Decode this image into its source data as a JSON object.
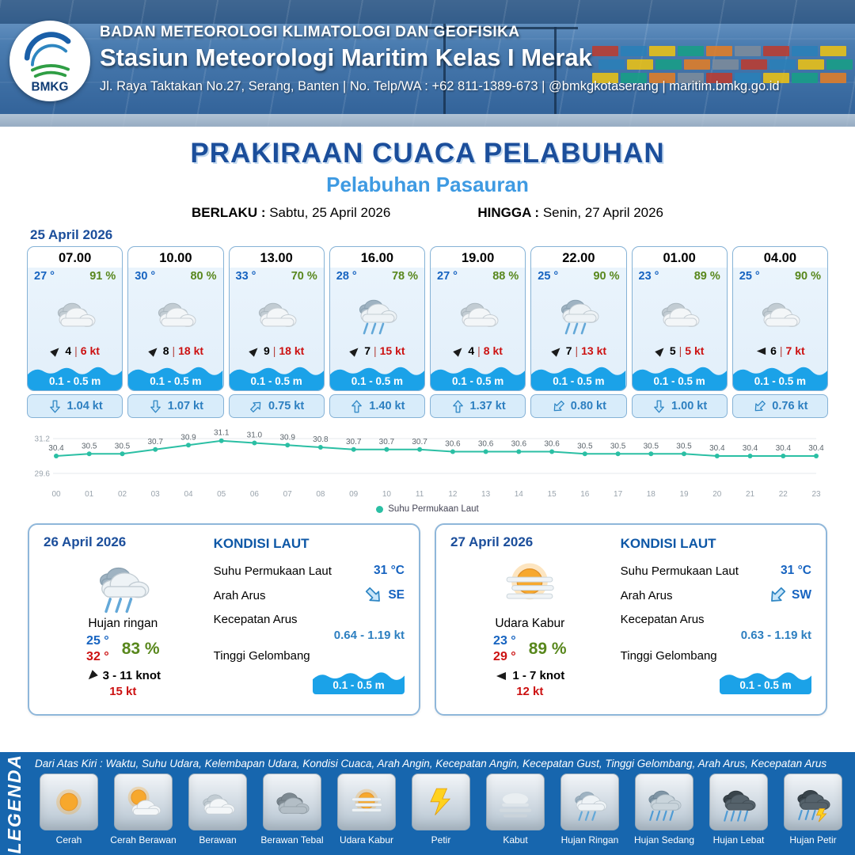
{
  "header": {
    "org": "BADAN METEOROLOGI KLIMATOLOGI DAN GEOFISIKA",
    "station": "Stasiun Meteorologi Maritim Kelas I Merak",
    "address": "Jl. Raya Taktakan No.27, Serang, Banten | No. Telp/WA : +62 811-1389-673 | @bmkgkotaserang | maritim.bmkg.go.id",
    "logo_text": "BMKG"
  },
  "title": {
    "main": "PRAKIRAAN CUACA PELABUHAN",
    "sub": "Pelabuhan Pasauran",
    "valid_label": "BERLAKU :",
    "valid_value": "Sabtu, 25 April 2026",
    "until_label": "HINGGA :",
    "until_value": "Senin, 27 April 2026"
  },
  "forecast": {
    "date": "25 April 2026",
    "cards": [
      {
        "time": "07.00",
        "temp": "27 °",
        "rh": "91 %",
        "icon": "berawan",
        "wind_dir": "NE",
        "wind": "4",
        "gust": "6 kt",
        "wave": "0.1 - 0.5 m",
        "current_dir": "S",
        "current": "1.04 kt"
      },
      {
        "time": "10.00",
        "temp": "30 °",
        "rh": "80 %",
        "icon": "berawan",
        "wind_dir": "NE",
        "wind": "8",
        "gust": "18 kt",
        "wave": "0.1 - 0.5 m",
        "current_dir": "S",
        "current": "1.07 kt"
      },
      {
        "time": "13.00",
        "temp": "33 °",
        "rh": "70 %",
        "icon": "berawan",
        "wind_dir": "NE",
        "wind": "9",
        "gust": "18 kt",
        "wave": "0.1 - 0.5 m",
        "current_dir": "NE",
        "current": "0.75 kt"
      },
      {
        "time": "16.00",
        "temp": "28 °",
        "rh": "78 %",
        "icon": "hujan-ringan",
        "wind_dir": "NE",
        "wind": "7",
        "gust": "15 kt",
        "wave": "0.1 - 0.5 m",
        "current_dir": "N",
        "current": "1.40 kt"
      },
      {
        "time": "19.00",
        "temp": "27 °",
        "rh": "88 %",
        "icon": "berawan",
        "wind_dir": "NE",
        "wind": "4",
        "gust": "8 kt",
        "wave": "0.1 - 0.5 m",
        "current_dir": "N",
        "current": "1.37 kt"
      },
      {
        "time": "22.00",
        "temp": "25 °",
        "rh": "90 %",
        "icon": "hujan-ringan",
        "wind_dir": "NE",
        "wind": "7",
        "gust": "13 kt",
        "wave": "0.1 - 0.5 m",
        "current_dir": "SW",
        "current": "0.80 kt"
      },
      {
        "time": "01.00",
        "temp": "23 °",
        "rh": "89 %",
        "icon": "berawan",
        "wind_dir": "NE",
        "wind": "5",
        "gust": "5 kt",
        "wave": "0.1 - 0.5 m",
        "current_dir": "S",
        "current": "1.00 kt"
      },
      {
        "time": "04.00",
        "temp": "25 °",
        "rh": "90 %",
        "icon": "berawan",
        "wind_dir": "W",
        "wind": "6",
        "gust": "7 kt",
        "wave": "0.1 - 0.5 m",
        "current_dir": "SW",
        "current": "0.76 kt"
      }
    ]
  },
  "chart_data": {
    "type": "line",
    "title": "",
    "series_name": "Suhu Permukaan Laut",
    "x": [
      "00",
      "01",
      "02",
      "03",
      "04",
      "05",
      "06",
      "07",
      "08",
      "09",
      "10",
      "11",
      "12",
      "13",
      "14",
      "15",
      "16",
      "17",
      "18",
      "19",
      "20",
      "21",
      "22",
      "23"
    ],
    "values": [
      30.4,
      30.5,
      30.5,
      30.7,
      30.9,
      31.1,
      31.0,
      30.9,
      30.8,
      30.7,
      30.7,
      30.7,
      30.6,
      30.6,
      30.6,
      30.6,
      30.5,
      30.5,
      30.5,
      30.5,
      30.4,
      30.4,
      30.4,
      30.4
    ],
    "ylim": [
      29.6,
      31.2
    ],
    "yticks": [
      31.2,
      29.6
    ],
    "color": "#2bbfa4",
    "grid": true,
    "legend_position": "bottom"
  },
  "days": [
    {
      "date": "26 April 2026",
      "icon": "hujan-ringan",
      "condition": "Hujan ringan",
      "temp_min": "25 °",
      "temp_max": "32 °",
      "rh": "83 %",
      "wind_dir": "SW",
      "wind_range": "3 - 11 knot",
      "gust": "15 kt",
      "sea": {
        "title": "KONDISI LAUT",
        "sst_label": "Suhu Permukaan Laut",
        "sst": "31 °C",
        "dir_label": "Arah Arus",
        "dir": "SE",
        "speed_label": "Kecepatan Arus",
        "speed": "0.64 - 1.19 kt",
        "wave_label": "Tinggi Gelombang",
        "wave": "0.1 - 0.5 m"
      }
    },
    {
      "date": "27 April 2026",
      "icon": "udara-kabur",
      "condition": "Udara Kabur",
      "temp_min": "23 °",
      "temp_max": "29 °",
      "rh": "89 %",
      "wind_dir": "W",
      "wind_range": "1 - 7 knot",
      "gust": "12 kt",
      "sea": {
        "title": "KONDISI LAUT",
        "sst_label": "Suhu Permukaan Laut",
        "sst": "31 °C",
        "dir_label": "Arah Arus",
        "dir": "SW",
        "speed_label": "Kecepatan Arus",
        "speed": "0.63 - 1.19 kt",
        "wave_label": "Tinggi Gelombang",
        "wave": "0.1 - 0.5 m"
      }
    }
  ],
  "legend": {
    "title": "LEGENDA",
    "description": "Dari Atas Kiri : Waktu, Suhu Udara, Kelembapan Udara, Kondisi Cuaca, Arah Angin, Kecepatan Angin, Kecepatan Gust, Tinggi Gelombang, Arah Arus, Kecepatan Arus",
    "items": [
      {
        "icon": "cerah",
        "label": "Cerah"
      },
      {
        "icon": "cerah-berawan",
        "label": "Cerah Berawan"
      },
      {
        "icon": "berawan",
        "label": "Berawan"
      },
      {
        "icon": "berawan-tebal",
        "label": "Berawan Tebal"
      },
      {
        "icon": "udara-kabur",
        "label": "Udara Kabur"
      },
      {
        "icon": "petir",
        "label": "Petir"
      },
      {
        "icon": "kabut",
        "label": "Kabut"
      },
      {
        "icon": "hujan-ringan",
        "label": "Hujan Ringan"
      },
      {
        "icon": "hujan-sedang",
        "label": "Hujan Sedang"
      },
      {
        "icon": "hujan-lebat",
        "label": "Hujan Lebat"
      },
      {
        "icon": "hujan-petir",
        "label": "Hujan Petir"
      }
    ]
  },
  "colors": {
    "accent_blue": "#1b4e9b",
    "subtitle_blue": "#3e9ae2",
    "green": "#58871c",
    "red": "#cc1111",
    "teal": "#2bbfa4",
    "wave_blue": "#1ba2e8",
    "legend_bg": "#1766ae"
  }
}
